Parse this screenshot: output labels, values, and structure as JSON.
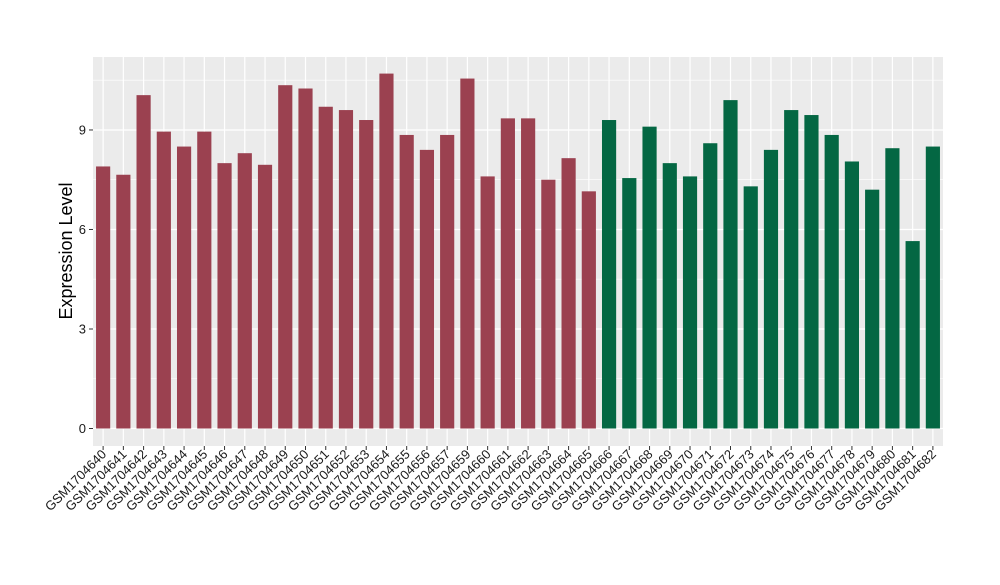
{
  "chart_data": {
    "type": "bar",
    "title": "",
    "xlabel": "",
    "ylabel": "Expression Level",
    "ylim": [
      0,
      11.3
    ],
    "yticks": [
      0,
      3,
      6,
      9
    ],
    "grid": true,
    "legend": "none",
    "categories": [
      "GSM1704640",
      "GSM1704641",
      "GSM1704642",
      "GSM1704643",
      "GSM1704644",
      "GSM1704645",
      "GSM1704646",
      "GSM1704647",
      "GSM1704648",
      "GSM1704649",
      "GSM1704650",
      "GSM1704651",
      "GSM1704652",
      "GSM1704653",
      "GSM1704654",
      "GSM1704655",
      "GSM1704656",
      "GSM1704657",
      "GSM1704659",
      "GSM1704660",
      "GSM1704661",
      "GSM1704662",
      "GSM1704663",
      "GSM1704664",
      "GSM1704665",
      "GSM1704666",
      "GSM1704667",
      "GSM1704668",
      "GSM1704669",
      "GSM1704670",
      "GSM1704671",
      "GSM1704672",
      "GSM1704673",
      "GSM1704674",
      "GSM1704675",
      "GSM1704676",
      "GSM1704677",
      "GSM1704678",
      "GSM1704679",
      "GSM1704680",
      "GSM1704681",
      "GSM1704682"
    ],
    "values": [
      7.9,
      7.65,
      10.05,
      8.95,
      8.5,
      8.95,
      8.0,
      8.3,
      7.95,
      10.35,
      10.25,
      9.7,
      9.6,
      9.3,
      10.7,
      8.85,
      8.4,
      8.85,
      10.55,
      7.6,
      9.35,
      9.35,
      7.5,
      8.15,
      7.15,
      9.3,
      7.55,
      9.1,
      8.0,
      7.6,
      8.6,
      9.9,
      7.3,
      8.4,
      9.6,
      9.45,
      8.85,
      8.05,
      7.2,
      8.45,
      5.65,
      8.5
    ],
    "group_sizes": [
      25,
      17
    ],
    "colors": {
      "group_1": "#9B4150",
      "group_2": "#046743",
      "panel_background": "#EBEBEB",
      "grid_line": "#FFFFFF"
    }
  }
}
